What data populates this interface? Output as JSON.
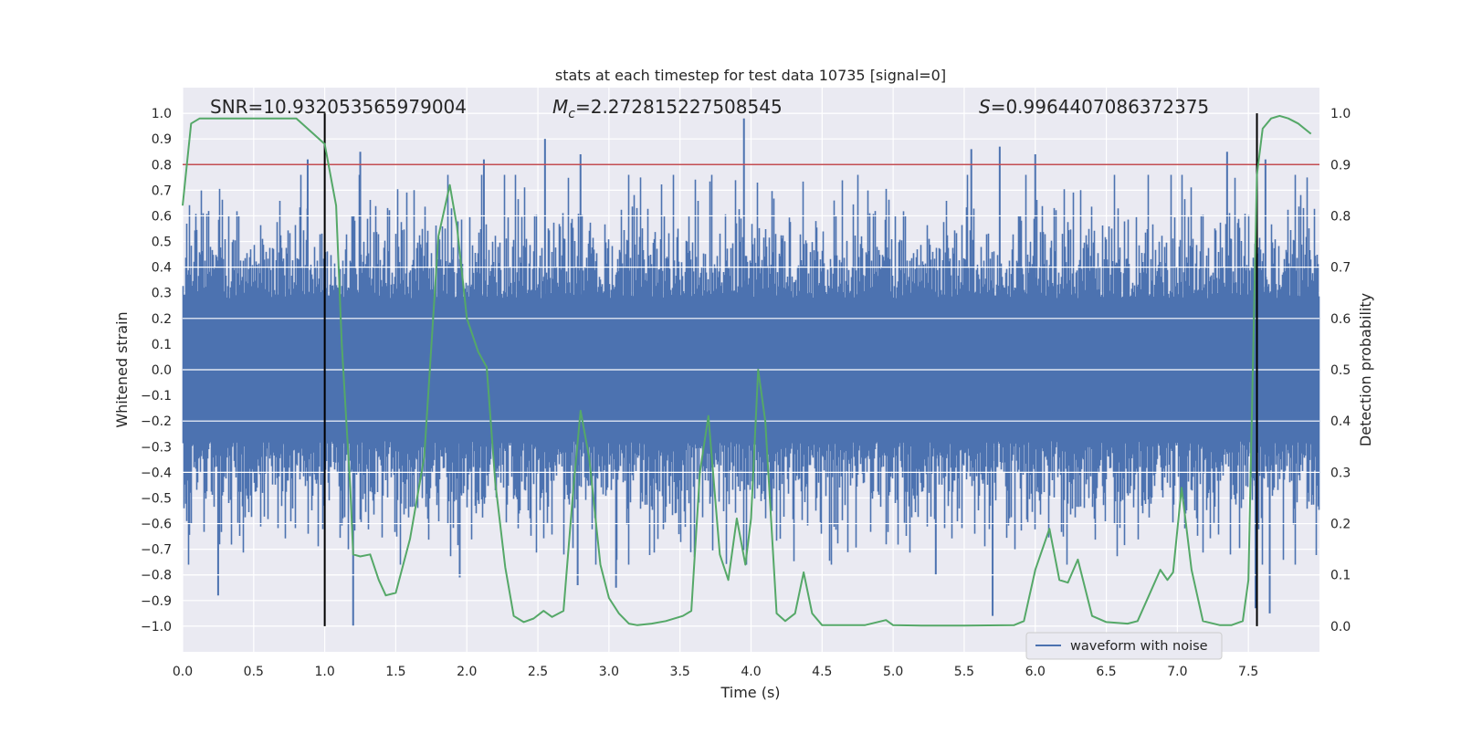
{
  "chart_data": {
    "type": "line",
    "title": "stats at each timestep for test data 10735 [signal=0]",
    "xlabel": "Time (s)",
    "ylabel": "Whitened strain",
    "y2label": "Detection probability",
    "xlim": [
      0.0,
      8.0
    ],
    "ylim": [
      -1.1,
      1.1
    ],
    "y2lim": [
      -0.05,
      1.05
    ],
    "x_ticks": [
      "0.0",
      "0.5",
      "1.0",
      "1.5",
      "2.0",
      "2.5",
      "3.0",
      "3.5",
      "4.0",
      "4.5",
      "5.0",
      "5.5",
      "6.0",
      "6.5",
      "7.0",
      "7.5"
    ],
    "y_ticks": [
      "1.0",
      "0.9",
      "0.8",
      "0.7",
      "0.6",
      "0.5",
      "0.4",
      "0.3",
      "0.2",
      "0.1",
      "0.0",
      "-0.1",
      "-0.2",
      "-0.3",
      "-0.4",
      "-0.5",
      "-0.6",
      "-0.7",
      "-0.8",
      "-0.9",
      "-1.0"
    ],
    "y2_ticks": [
      "1.0",
      "0.9",
      "0.8",
      "0.7",
      "0.6",
      "0.5",
      "0.4",
      "0.3",
      "0.2",
      "0.1",
      "0.0"
    ],
    "grid": true,
    "legend_placement": "lower-right",
    "annotations": {
      "snr": "SNR=10.932053565979004",
      "mc_symbol": "M",
      "mc_sub": "c",
      "mc_value": "=2.272815227508545",
      "s_symbol": "S",
      "s_value": "=0.9964407086372375"
    },
    "threshold": {
      "y2": 0.9,
      "color": "#c44e52"
    },
    "vlines": {
      "x": [
        1.0,
        7.56
      ],
      "color": "#000000"
    },
    "series": [
      {
        "name": "waveform with noise",
        "color": "#4c72b0",
        "kind": "noise",
        "typical_amplitude": 0.45,
        "peaks": [
          {
            "x": 0.88,
            "y": 0.82
          },
          {
            "x": 1.25,
            "y": 0.85
          },
          {
            "x": 2.55,
            "y": 0.9
          },
          {
            "x": 2.8,
            "y": 0.84
          },
          {
            "x": 2.12,
            "y": 0.82
          },
          {
            "x": 3.95,
            "y": 0.98
          },
          {
            "x": 5.55,
            "y": 0.86
          },
          {
            "x": 5.75,
            "y": 0.87
          },
          {
            "x": 6.0,
            "y": 0.84
          },
          {
            "x": 7.35,
            "y": 0.85
          },
          {
            "x": 7.62,
            "y": 0.82
          },
          {
            "x": 0.25,
            "y": -0.88
          },
          {
            "x": 1.2,
            "y": -1.0
          },
          {
            "x": 5.7,
            "y": -0.96
          },
          {
            "x": 7.65,
            "y": -0.95
          },
          {
            "x": 7.55,
            "y": -0.93
          },
          {
            "x": 3.05,
            "y": -0.85
          },
          {
            "x": 2.78,
            "y": -0.84
          },
          {
            "x": 5.3,
            "y": -0.8
          },
          {
            "x": 1.95,
            "y": -0.81
          }
        ]
      },
      {
        "name": "Detection probability",
        "color": "#55a868",
        "axis": "right",
        "x": [
          0.0,
          0.06,
          0.12,
          0.2,
          0.5,
          0.8,
          0.88,
          1.0,
          1.08,
          1.12,
          1.18,
          1.2,
          1.25,
          1.32,
          1.38,
          1.43,
          1.5,
          1.6,
          1.7,
          1.8,
          1.88,
          1.93,
          2.0,
          2.08,
          2.14,
          2.2,
          2.27,
          2.33,
          2.4,
          2.47,
          2.54,
          2.6,
          2.68,
          2.75,
          2.8,
          2.86,
          2.94,
          3.0,
          3.07,
          3.14,
          3.2,
          3.3,
          3.4,
          3.52,
          3.58,
          3.64,
          3.7,
          3.78,
          3.84,
          3.9,
          3.96,
          4.0,
          4.05,
          4.1,
          4.18,
          4.24,
          4.31,
          4.37,
          4.43,
          4.5,
          4.65,
          4.8,
          4.95,
          5.0,
          5.2,
          5.5,
          5.85,
          5.92,
          6.0,
          6.1,
          6.17,
          6.23,
          6.3,
          6.4,
          6.5,
          6.65,
          6.72,
          6.8,
          6.88,
          6.93,
          6.97,
          7.03,
          7.1,
          7.18,
          7.3,
          7.38,
          7.46,
          7.5,
          7.56,
          7.6,
          7.66,
          7.72,
          7.78,
          7.85,
          7.94
        ],
        "y": [
          0.82,
          0.98,
          0.99,
          0.99,
          0.99,
          0.99,
          0.97,
          0.94,
          0.82,
          0.55,
          0.27,
          0.14,
          0.136,
          0.14,
          0.09,
          0.06,
          0.065,
          0.17,
          0.33,
          0.76,
          0.86,
          0.78,
          0.6,
          0.535,
          0.505,
          0.28,
          0.115,
          0.02,
          0.008,
          0.015,
          0.03,
          0.018,
          0.03,
          0.27,
          0.42,
          0.33,
          0.12,
          0.055,
          0.025,
          0.005,
          0.002,
          0.005,
          0.01,
          0.02,
          0.03,
          0.3,
          0.41,
          0.14,
          0.09,
          0.21,
          0.12,
          0.21,
          0.5,
          0.4,
          0.025,
          0.01,
          0.025,
          0.105,
          0.025,
          0.002,
          0.002,
          0.002,
          0.012,
          0.002,
          0.001,
          0.001,
          0.002,
          0.01,
          0.11,
          0.19,
          0.09,
          0.085,
          0.13,
          0.02,
          0.008,
          0.005,
          0.01,
          0.06,
          0.11,
          0.09,
          0.105,
          0.27,
          0.11,
          0.01,
          0.002,
          0.002,
          0.01,
          0.09,
          0.88,
          0.97,
          0.99,
          0.995,
          0.99,
          0.98,
          0.96
        ]
      }
    ]
  }
}
